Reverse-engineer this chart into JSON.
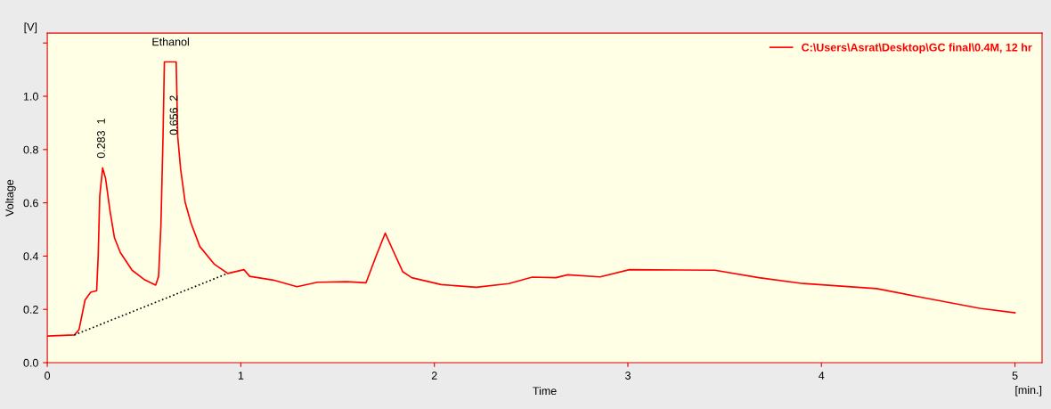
{
  "chart_data": {
    "type": "line",
    "xlabel": "Time",
    "ylabel": "Voltage",
    "xlim": [
      0,
      5.14
    ],
    "ylim": [
      0,
      1.237
    ],
    "xticks": [
      0,
      1,
      2,
      3,
      4,
      5
    ],
    "yticks": [
      {
        "value": 0,
        "label": "0.0"
      },
      {
        "value": 0.2,
        "label": "0.2"
      },
      {
        "value": 0.4,
        "label": "0.4"
      },
      {
        "value": 0.6,
        "label": "0.6"
      },
      {
        "value": 0.8,
        "label": "0.8"
      },
      {
        "value": 1.0,
        "label": "1.0"
      },
      {
        "value": 1.2,
        "label": null
      }
    ],
    "grid": false,
    "legend": "top right",
    "marker": "none",
    "annotations": [
      "Ethanol",
      "0.283  1",
      "0.656  2",
      "[V]",
      "[min.]"
    ],
    "series": [
      {
        "name": "C:\\Users\\Asrat\\Desktop\\GC final\\0.4M, 12 hr",
        "color": "#ff0000",
        "line_style": "solid",
        "x": [
          0,
          0.14,
          0.164,
          0.195,
          0.224,
          0.255,
          0.263,
          0.271,
          0.286,
          0.301,
          0.324,
          0.347,
          0.377,
          0.438,
          0.499,
          0.56,
          0.575,
          0.587,
          0.598,
          0.605,
          0.666,
          0.674,
          0.689,
          0.712,
          0.742,
          0.788,
          0.864,
          0.932,
          1.016,
          1.046,
          1.168,
          1.29,
          1.396,
          1.548,
          1.647,
          1.7,
          1.746,
          1.791,
          1.837,
          1.883,
          2.035,
          2.217,
          2.385,
          2.506,
          2.628,
          2.689,
          2.856,
          3.008,
          3.449,
          3.677,
          3.905,
          4.285,
          4.513,
          4.818,
          5.0
        ],
        "values": [
          0.1,
          0.104,
          0.124,
          0.235,
          0.264,
          0.27,
          0.4,
          0.625,
          0.731,
          0.692,
          0.57,
          0.469,
          0.414,
          0.347,
          0.313,
          0.291,
          0.324,
          0.514,
          0.849,
          1.129,
          1.129,
          0.848,
          0.726,
          0.603,
          0.525,
          0.436,
          0.369,
          0.335,
          0.349,
          0.324,
          0.31,
          0.285,
          0.302,
          0.304,
          0.3,
          0.402,
          0.486,
          0.414,
          0.341,
          0.319,
          0.293,
          0.283,
          0.297,
          0.321,
          0.319,
          0.33,
          0.322,
          0.349,
          0.347,
          0.319,
          0.297,
          0.278,
          0.246,
          0.204,
          0.187
        ]
      },
      {
        "type": "line",
        "color": "#000000",
        "line_style": "dotted",
        "x": [
          0.14,
          0.932
        ],
        "values": [
          0.104,
          0.335
        ]
      }
    ]
  }
}
